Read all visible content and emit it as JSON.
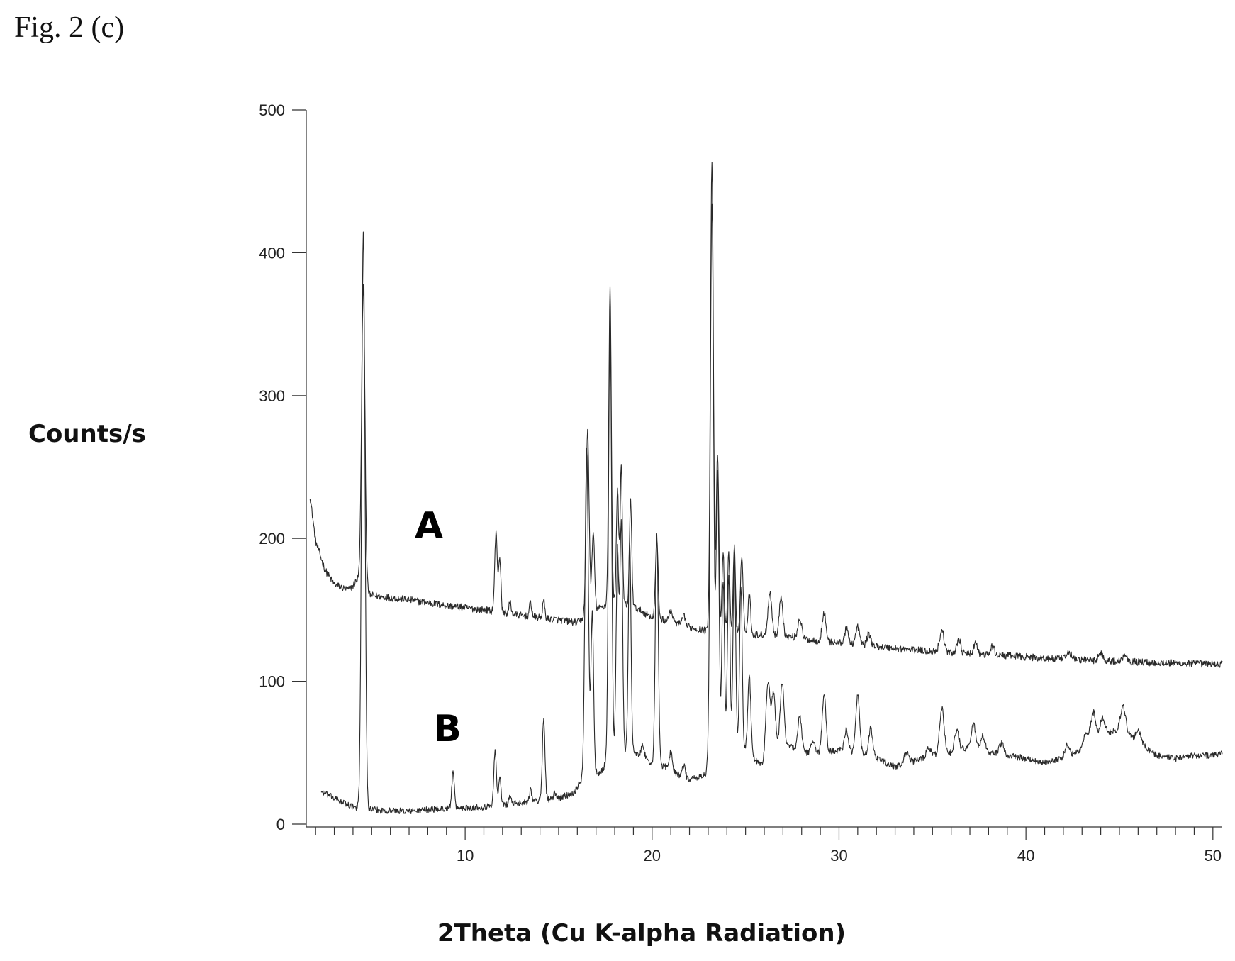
{
  "figure_label": "Fig. 2 (c)",
  "chart_data": {
    "type": "line",
    "title": "",
    "xlabel": "2Theta (Cu K-alpha Radiation)",
    "ylabel": "Counts/s",
    "xlim": [
      1.5,
      50.5
    ],
    "ylim": [
      0,
      500
    ],
    "x_ticks": [
      10,
      20,
      30,
      40,
      50
    ],
    "y_ticks": [
      0,
      100,
      200,
      300,
      400,
      500
    ],
    "grid": false,
    "legend": "none",
    "series": [
      {
        "name": "A",
        "label_at": [
          7.3,
          200
        ],
        "baseline": [
          [
            1.7,
            230
          ],
          [
            2.0,
            198
          ],
          [
            2.5,
            178
          ],
          [
            3.0,
            168
          ],
          [
            4.0,
            162
          ],
          [
            5.0,
            160
          ],
          [
            7.0,
            157
          ],
          [
            9.0,
            153
          ],
          [
            11.0,
            150
          ],
          [
            13.0,
            146
          ],
          [
            15.0,
            143
          ],
          [
            16.0,
            141
          ],
          [
            17.0,
            150
          ],
          [
            18.0,
            156
          ],
          [
            19.0,
            152
          ],
          [
            20.0,
            145
          ],
          [
            21.0,
            142
          ],
          [
            22.0,
            138
          ],
          [
            23.0,
            135
          ],
          [
            25.0,
            133
          ],
          [
            27.0,
            132
          ],
          [
            29.0,
            128
          ],
          [
            31.0,
            126
          ],
          [
            33.0,
            123
          ],
          [
            35.0,
            121
          ],
          [
            37.0,
            119
          ],
          [
            39.0,
            118
          ],
          [
            41.0,
            116
          ],
          [
            43.0,
            115
          ],
          [
            45.0,
            114
          ],
          [
            47.0,
            113
          ],
          [
            50.5,
            112
          ]
        ],
        "peaks": [
          [
            4.55,
            210,
            0.09
          ],
          [
            4.3,
            10,
            0.25
          ],
          [
            11.65,
            55,
            0.07
          ],
          [
            11.85,
            38,
            0.06
          ],
          [
            12.4,
            8,
            0.06
          ],
          [
            13.5,
            10,
            0.06
          ],
          [
            14.2,
            12,
            0.06
          ],
          [
            16.55,
            130,
            0.08
          ],
          [
            16.85,
            55,
            0.07
          ],
          [
            17.75,
            220,
            0.07
          ],
          [
            18.15,
            80,
            0.06
          ],
          [
            18.35,
            95,
            0.06
          ],
          [
            18.85,
            75,
            0.06
          ],
          [
            20.25,
            55,
            0.07
          ],
          [
            21.0,
            8,
            0.08
          ],
          [
            21.7,
            6,
            0.08
          ],
          [
            23.2,
            330,
            0.08
          ],
          [
            23.5,
            125,
            0.07
          ],
          [
            23.8,
            55,
            0.06
          ],
          [
            24.1,
            55,
            0.06
          ],
          [
            24.4,
            62,
            0.06
          ],
          [
            24.8,
            55,
            0.07
          ],
          [
            25.2,
            28,
            0.07
          ],
          [
            26.3,
            30,
            0.1
          ],
          [
            26.9,
            28,
            0.09
          ],
          [
            27.9,
            14,
            0.1
          ],
          [
            29.2,
            20,
            0.1
          ],
          [
            30.4,
            10,
            0.1
          ],
          [
            31.0,
            12,
            0.1
          ],
          [
            31.6,
            8,
            0.1
          ],
          [
            35.5,
            15,
            0.12
          ],
          [
            36.4,
            10,
            0.1
          ],
          [
            37.3,
            8,
            0.1
          ],
          [
            38.2,
            6,
            0.1
          ],
          [
            42.3,
            5,
            0.12
          ],
          [
            44.0,
            5,
            0.12
          ],
          [
            45.3,
            5,
            0.12
          ]
        ],
        "noise": 2.5
      },
      {
        "name": "B",
        "label_at": [
          8.3,
          58
        ],
        "baseline": [
          [
            2.3,
            23
          ],
          [
            3.0,
            18
          ],
          [
            4.0,
            12
          ],
          [
            4.3,
            11
          ],
          [
            5.0,
            10
          ],
          [
            7.0,
            9
          ],
          [
            9.0,
            11
          ],
          [
            11.0,
            12
          ],
          [
            13.0,
            15
          ],
          [
            15.0,
            18
          ],
          [
            15.8,
            22
          ],
          [
            16.2,
            30
          ],
          [
            16.8,
            38
          ],
          [
            17.2,
            35
          ],
          [
            17.6,
            44
          ],
          [
            18.0,
            52
          ],
          [
            19.0,
            50
          ],
          [
            19.5,
            46
          ],
          [
            20.0,
            42
          ],
          [
            20.8,
            40
          ],
          [
            21.5,
            34
          ],
          [
            22.0,
            31
          ],
          [
            22.8,
            34
          ],
          [
            23.5,
            45
          ],
          [
            24.0,
            55
          ],
          [
            25.0,
            52
          ],
          [
            25.6,
            44
          ],
          [
            26.0,
            40
          ],
          [
            27.0,
            58
          ],
          [
            28.0,
            50
          ],
          [
            29.0,
            50
          ],
          [
            30.0,
            52
          ],
          [
            31.0,
            50
          ],
          [
            32.0,
            46
          ],
          [
            33.0,
            40
          ],
          [
            34.0,
            44
          ],
          [
            35.0,
            48
          ],
          [
            36.0,
            50
          ],
          [
            37.0,
            54
          ],
          [
            38.0,
            50
          ],
          [
            39.0,
            48
          ],
          [
            40.0,
            46
          ],
          [
            41.0,
            43
          ],
          [
            42.0,
            46
          ],
          [
            43.0,
            52
          ],
          [
            44.0,
            62
          ],
          [
            45.0,
            66
          ],
          [
            46.0,
            58
          ],
          [
            47.0,
            48
          ],
          [
            48.0,
            46
          ],
          [
            49.0,
            48
          ],
          [
            50.0,
            48
          ],
          [
            50.5,
            50
          ]
        ],
        "peaks": [
          [
            4.55,
            405,
            0.09
          ],
          [
            9.35,
            24,
            0.07
          ],
          [
            11.6,
            38,
            0.07
          ],
          [
            11.85,
            20,
            0.06
          ],
          [
            12.4,
            6,
            0.06
          ],
          [
            13.5,
            8,
            0.07
          ],
          [
            14.2,
            58,
            0.07
          ],
          [
            14.8,
            4,
            0.06
          ],
          [
            16.5,
            230,
            0.09
          ],
          [
            16.8,
            110,
            0.07
          ],
          [
            17.75,
            310,
            0.08
          ],
          [
            18.15,
            140,
            0.07
          ],
          [
            18.35,
            160,
            0.07
          ],
          [
            18.8,
            150,
            0.07
          ],
          [
            19.5,
            10,
            0.08
          ],
          [
            20.25,
            160,
            0.08
          ],
          [
            21.0,
            12,
            0.08
          ],
          [
            21.7,
            8,
            0.08
          ],
          [
            23.2,
            395,
            0.09
          ],
          [
            23.5,
            200,
            0.08
          ],
          [
            23.8,
            120,
            0.07
          ],
          [
            24.1,
            120,
            0.07
          ],
          [
            24.4,
            135,
            0.07
          ],
          [
            24.75,
            115,
            0.07
          ],
          [
            25.2,
            55,
            0.08
          ],
          [
            26.2,
            55,
            0.12
          ],
          [
            26.5,
            40,
            0.1
          ],
          [
            26.95,
            42,
            0.1
          ],
          [
            27.9,
            25,
            0.1
          ],
          [
            28.6,
            8,
            0.1
          ],
          [
            29.2,
            40,
            0.1
          ],
          [
            30.4,
            15,
            0.1
          ],
          [
            31.0,
            40,
            0.1
          ],
          [
            31.7,
            20,
            0.1
          ],
          [
            33.6,
            8,
            0.12
          ],
          [
            34.8,
            6,
            0.12
          ],
          [
            35.5,
            32,
            0.12
          ],
          [
            36.3,
            14,
            0.12
          ],
          [
            37.2,
            16,
            0.12
          ],
          [
            37.7,
            10,
            0.12
          ],
          [
            38.7,
            8,
            0.12
          ],
          [
            42.2,
            8,
            0.12
          ],
          [
            43.2,
            10,
            0.12
          ],
          [
            43.6,
            20,
            0.14
          ],
          [
            44.1,
            12,
            0.12
          ],
          [
            45.2,
            18,
            0.14
          ],
          [
            46.0,
            8,
            0.12
          ]
        ],
        "noise": 2.2
      }
    ]
  }
}
